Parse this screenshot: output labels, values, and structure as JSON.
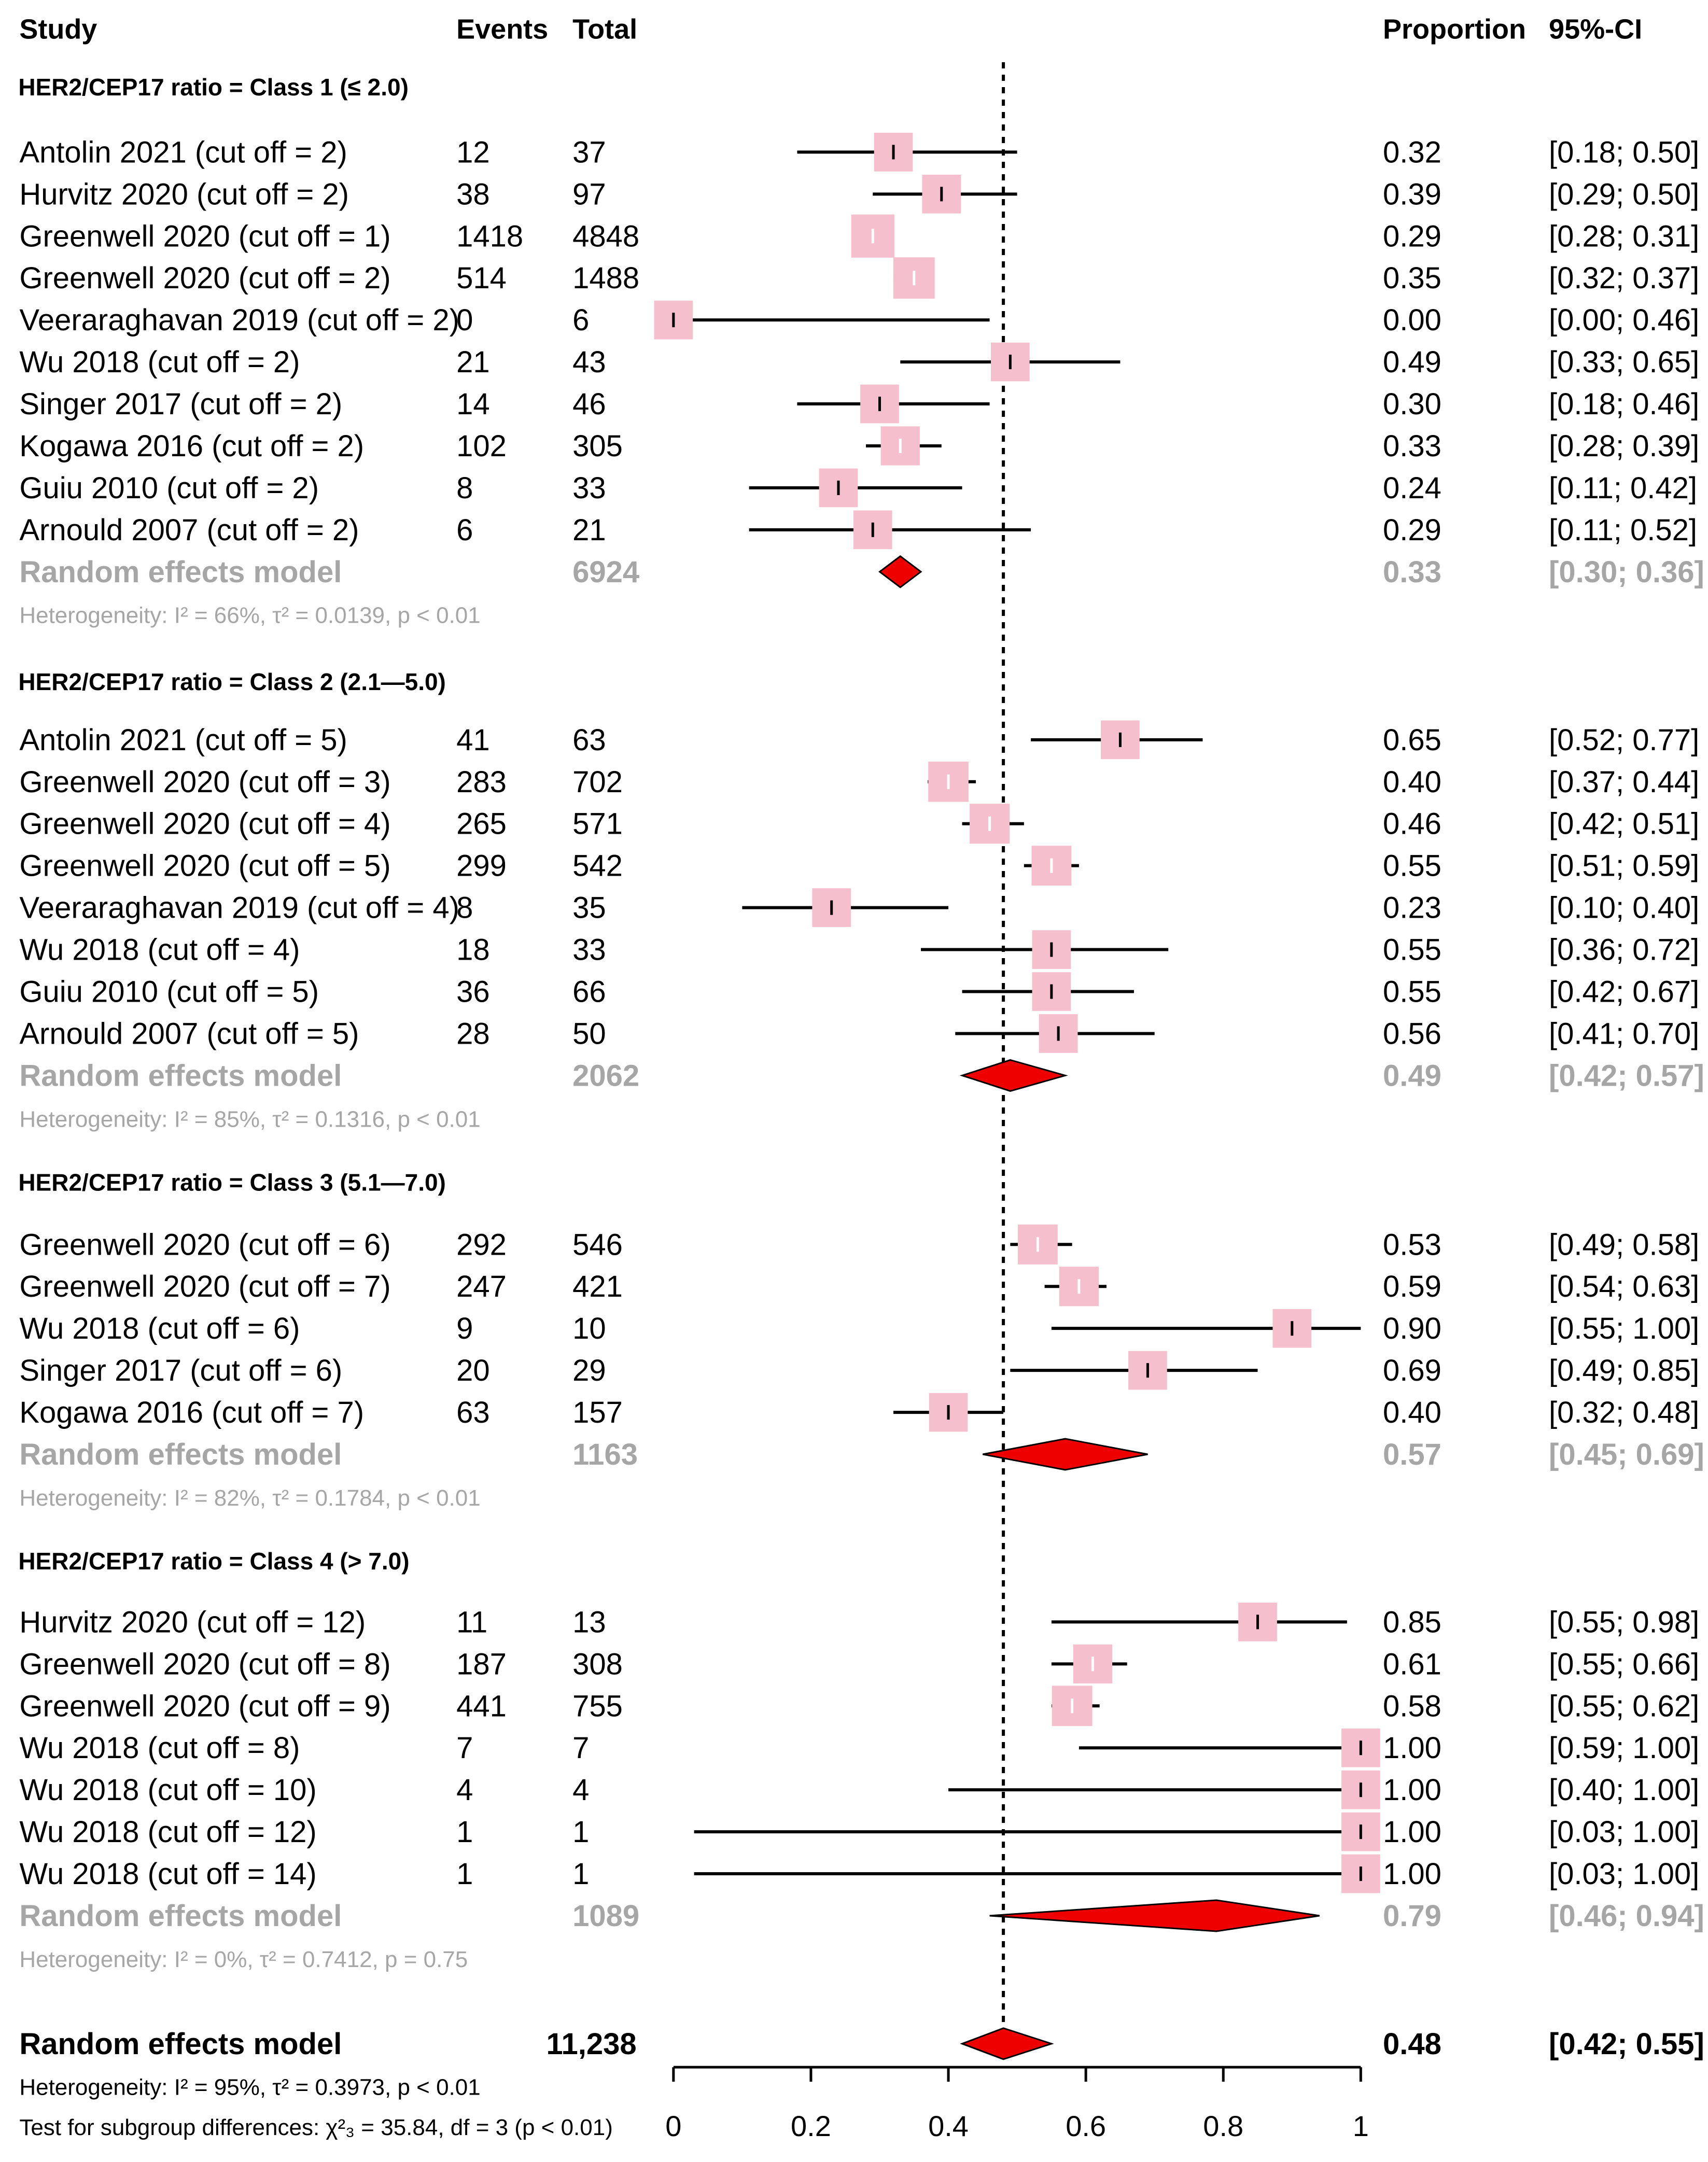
{
  "chart_data": {
    "type": "forest",
    "headers": {
      "study": "Study",
      "events": "Events",
      "total": "Total",
      "proportion": "Proportion",
      "ci": "95%-CI"
    },
    "x_axis": {
      "ticks": [
        "0",
        "0.2",
        "0.4",
        "0.6",
        "0.8",
        "1"
      ],
      "xlim": [
        0,
        1
      ],
      "reference_line": 0.48
    },
    "groups": [
      {
        "title": "HER2/CEP17 ratio = Class 1 (≤ 2.0)",
        "studies": [
          {
            "study": "Antolin 2021 (cut off = 2)",
            "events": "12",
            "total": "37",
            "prop": "0.32",
            "ci": "[0.18; 0.50]",
            "p": 0.32,
            "lo": 0.18,
            "hi": 0.5
          },
          {
            "study": "Hurvitz 2020 (cut off = 2)",
            "events": "38",
            "total": "97",
            "prop": "0.39",
            "ci": "[0.29; 0.50]",
            "p": 0.39,
            "lo": 0.29,
            "hi": 0.5
          },
          {
            "study": "Greenwell 2020 (cut off = 1)",
            "events": "1418",
            "total": "4848",
            "prop": "0.29",
            "ci": "[0.28; 0.31]",
            "p": 0.29,
            "lo": 0.28,
            "hi": 0.31
          },
          {
            "study": "Greenwell 2020 (cut off = 2)",
            "events": "514",
            "total": "1488",
            "prop": "0.35",
            "ci": "[0.32; 0.37]",
            "p": 0.35,
            "lo": 0.32,
            "hi": 0.37
          },
          {
            "study": "Veeraraghavan 2019 (cut off = 2)",
            "events": "0",
            "total": "6",
            "prop": "0.00",
            "ci": "[0.00; 0.46]",
            "p": 0.0,
            "lo": 0.0,
            "hi": 0.46
          },
          {
            "study": "Wu 2018 (cut off = 2)",
            "events": "21",
            "total": "43",
            "prop": "0.49",
            "ci": "[0.33; 0.65]",
            "p": 0.49,
            "lo": 0.33,
            "hi": 0.65
          },
          {
            "study": "Singer 2017 (cut off = 2)",
            "events": "14",
            "total": "46",
            "prop": "0.30",
            "ci": "[0.18; 0.46]",
            "p": 0.3,
            "lo": 0.18,
            "hi": 0.46
          },
          {
            "study": "Kogawa 2016 (cut off = 2)",
            "events": "102",
            "total": "305",
            "prop": "0.33",
            "ci": "[0.28; 0.39]",
            "p": 0.33,
            "lo": 0.28,
            "hi": 0.39
          },
          {
            "study": "Guiu 2010 (cut off = 2)",
            "events": "8",
            "total": "33",
            "prop": "0.24",
            "ci": "[0.11; 0.42]",
            "p": 0.24,
            "lo": 0.11,
            "hi": 0.42
          },
          {
            "study": "Arnould 2007 (cut off = 2)",
            "events": "6",
            "total": "21",
            "prop": "0.29",
            "ci": "[0.11; 0.52]",
            "p": 0.29,
            "lo": 0.11,
            "hi": 0.52
          }
        ],
        "model": {
          "label": "Random effects model",
          "total": "6924",
          "prop": "0.33",
          "ci": "[0.30; 0.36]",
          "p": 0.33,
          "lo": 0.3,
          "hi": 0.36
        },
        "heterogeneity": "Heterogeneity: I² = 66%, τ² = 0.0139, p < 0.01"
      },
      {
        "title": "HER2/CEP17 ratio = Class 2 (2.1—5.0)",
        "studies": [
          {
            "study": "Antolin 2021 (cut off = 5)",
            "events": "41",
            "total": "63",
            "prop": "0.65",
            "ci": "[0.52; 0.77]",
            "p": 0.65,
            "lo": 0.52,
            "hi": 0.77
          },
          {
            "study": "Greenwell 2020 (cut off = 3)",
            "events": "283",
            "total": "702",
            "prop": "0.40",
            "ci": "[0.37; 0.44]",
            "p": 0.4,
            "lo": 0.37,
            "hi": 0.44
          },
          {
            "study": "Greenwell 2020 (cut off = 4)",
            "events": "265",
            "total": "571",
            "prop": "0.46",
            "ci": "[0.42; 0.51]",
            "p": 0.46,
            "lo": 0.42,
            "hi": 0.51
          },
          {
            "study": "Greenwell 2020 (cut off = 5)",
            "events": "299",
            "total": "542",
            "prop": "0.55",
            "ci": "[0.51; 0.59]",
            "p": 0.55,
            "lo": 0.51,
            "hi": 0.59
          },
          {
            "study": "Veeraraghavan 2019 (cut off = 4)",
            "events": "8",
            "total": "35",
            "prop": "0.23",
            "ci": "[0.10; 0.40]",
            "p": 0.23,
            "lo": 0.1,
            "hi": 0.4
          },
          {
            "study": "Wu 2018 (cut off = 4)",
            "events": "18",
            "total": "33",
            "prop": "0.55",
            "ci": "[0.36; 0.72]",
            "p": 0.55,
            "lo": 0.36,
            "hi": 0.72
          },
          {
            "study": "Guiu 2010 (cut off = 5)",
            "events": "36",
            "total": "66",
            "prop": "0.55",
            "ci": "[0.42; 0.67]",
            "p": 0.55,
            "lo": 0.42,
            "hi": 0.67
          },
          {
            "study": "Arnould 2007 (cut off = 5)",
            "events": "28",
            "total": "50",
            "prop": "0.56",
            "ci": "[0.41; 0.70]",
            "p": 0.56,
            "lo": 0.41,
            "hi": 0.7
          }
        ],
        "model": {
          "label": "Random effects model",
          "total": "2062",
          "prop": "0.49",
          "ci": "[0.42; 0.57]",
          "p": 0.49,
          "lo": 0.42,
          "hi": 0.57
        },
        "heterogeneity": "Heterogeneity: I² = 85%, τ² = 0.1316, p < 0.01"
      },
      {
        "title": "HER2/CEP17 ratio = Class 3 (5.1—7.0)",
        "studies": [
          {
            "study": "Greenwell 2020 (cut off = 6)",
            "events": "292",
            "total": "546",
            "prop": "0.53",
            "ci": "[0.49; 0.58]",
            "p": 0.53,
            "lo": 0.49,
            "hi": 0.58
          },
          {
            "study": "Greenwell 2020 (cut off = 7)",
            "events": "247",
            "total": "421",
            "prop": "0.59",
            "ci": "[0.54; 0.63]",
            "p": 0.59,
            "lo": 0.54,
            "hi": 0.63
          },
          {
            "study": "Wu 2018 (cut off = 6)",
            "events": "9",
            "total": "10",
            "prop": "0.90",
            "ci": "[0.55; 1.00]",
            "p": 0.9,
            "lo": 0.55,
            "hi": 1.0
          },
          {
            "study": "Singer 2017 (cut off = 6)",
            "events": "20",
            "total": "29",
            "prop": "0.69",
            "ci": "[0.49; 0.85]",
            "p": 0.69,
            "lo": 0.49,
            "hi": 0.85
          },
          {
            "study": "Kogawa 2016 (cut off = 7)",
            "events": "63",
            "total": "157",
            "prop": "0.40",
            "ci": "[0.32; 0.48]",
            "p": 0.4,
            "lo": 0.32,
            "hi": 0.48
          }
        ],
        "model": {
          "label": "Random effects model",
          "total": "1163",
          "prop": "0.57",
          "ci": "[0.45; 0.69]",
          "p": 0.57,
          "lo": 0.45,
          "hi": 0.69
        },
        "heterogeneity": "Heterogeneity: I² = 82%, τ² = 0.1784, p < 0.01"
      },
      {
        "title": "HER2/CEP17 ratio = Class 4 (> 7.0)",
        "studies": [
          {
            "study": "Hurvitz 2020 (cut off = 12)",
            "events": "11",
            "total": "13",
            "prop": "0.85",
            "ci": "[0.55; 0.98]",
            "p": 0.85,
            "lo": 0.55,
            "hi": 0.98
          },
          {
            "study": "Greenwell 2020 (cut off = 8)",
            "events": "187",
            "total": "308",
            "prop": "0.61",
            "ci": "[0.55; 0.66]",
            "p": 0.61,
            "lo": 0.55,
            "hi": 0.66
          },
          {
            "study": "Greenwell 2020 (cut off = 9)",
            "events": "441",
            "total": "755",
            "prop": "0.58",
            "ci": "[0.55; 0.62]",
            "p": 0.58,
            "lo": 0.55,
            "hi": 0.62
          },
          {
            "study": "Wu 2018 (cut off = 8)",
            "events": "7",
            "total": "7",
            "prop": "1.00",
            "ci": "[0.59; 1.00]",
            "p": 1.0,
            "lo": 0.59,
            "hi": 1.0
          },
          {
            "study": "Wu 2018 (cut off = 10)",
            "events": "4",
            "total": "4",
            "prop": "1.00",
            "ci": "[0.40; 1.00]",
            "p": 1.0,
            "lo": 0.4,
            "hi": 1.0
          },
          {
            "study": "Wu 2018 (cut off = 12)",
            "events": "1",
            "total": "1",
            "prop": "1.00",
            "ci": "[0.03; 1.00]",
            "p": 1.0,
            "lo": 0.03,
            "hi": 1.0
          },
          {
            "study": "Wu 2018 (cut off = 14)",
            "events": "1",
            "total": "1",
            "prop": "1.00",
            "ci": "[0.03; 1.00]",
            "p": 1.0,
            "lo": 0.03,
            "hi": 1.0
          }
        ],
        "model": {
          "label": "Random effects model",
          "total": "1089",
          "prop": "0.79",
          "ci": "[0.46; 0.94]",
          "p": 0.79,
          "lo": 0.46,
          "hi": 0.94
        },
        "heterogeneity": "Heterogeneity: I² = 0%, τ² = 0.7412, p = 0.75"
      }
    ],
    "overall": {
      "label": "Random effects model",
      "total": "11,238",
      "prop": "0.48",
      "ci": "[0.42; 0.55]",
      "p": 0.48,
      "lo": 0.42,
      "hi": 0.55,
      "heterogeneity": "Heterogeneity: I² = 95%, τ² = 0.3973, p < 0.01",
      "subgroup_test": "Test for subgroup differences: χ²₃ = 35.84, df = 3 (p < 0.01)"
    },
    "colors": {
      "square": "#f6bfcd",
      "diamond": "#ee0000",
      "line": "#000000",
      "grey_text": "#a6a6a6"
    }
  }
}
